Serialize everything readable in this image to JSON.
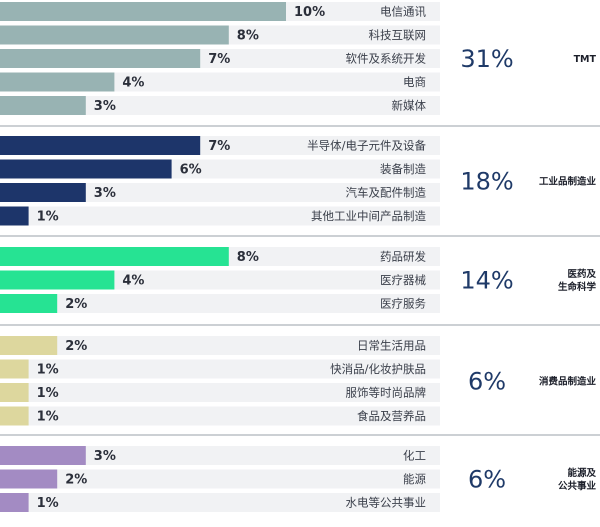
{
  "chart_data": {
    "type": "bar",
    "orientation": "horizontal",
    "unit": "%",
    "groups": [
      {
        "name_lines": [
          "TMT"
        ],
        "total": "31%",
        "color": "#98b3b3",
        "items": [
          {
            "label": "电信通讯",
            "value": 10,
            "value_label": "10%"
          },
          {
            "label": "科技互联网",
            "value": 8,
            "value_label": "8%"
          },
          {
            "label": "软件及系统开发",
            "value": 7,
            "value_label": "7%"
          },
          {
            "label": "电商",
            "value": 4,
            "value_label": "4%"
          },
          {
            "label": "新媒体",
            "value": 3,
            "value_label": "3%"
          }
        ]
      },
      {
        "name_lines": [
          "工业品制造业"
        ],
        "total": "18%",
        "color": "#1d356a",
        "items": [
          {
            "label": "半导体/电子元件及设备",
            "value": 7,
            "value_label": "7%"
          },
          {
            "label": "装备制造",
            "value": 6,
            "value_label": "6%"
          },
          {
            "label": "汽车及配件制造",
            "value": 3,
            "value_label": "3%"
          },
          {
            "label": "其他工业中间产品制造",
            "value": 1,
            "value_label": "1%"
          }
        ]
      },
      {
        "name_lines": [
          "医药及",
          "生命科学"
        ],
        "total": "14%",
        "color": "#26e393",
        "items": [
          {
            "label": "药品研发",
            "value": 8,
            "value_label": "8%"
          },
          {
            "label": "医疗器械",
            "value": 4,
            "value_label": "4%"
          },
          {
            "label": "医疗服务",
            "value": 2,
            "value_label": "2%"
          }
        ]
      },
      {
        "name_lines": [
          "消费品制造业"
        ],
        "total": "6%",
        "color": "#ddd79e",
        "items": [
          {
            "label": "日常生活用品",
            "value": 2,
            "value_label": "2%"
          },
          {
            "label": "快消品/化妆护肤品",
            "value": 1,
            "value_label": "1%"
          },
          {
            "label": "服饰等时尚品牌",
            "value": 1,
            "value_label": "1%"
          },
          {
            "label": "食品及营养品",
            "value": 1,
            "value_label": "1%"
          }
        ]
      },
      {
        "name_lines": [
          "能源及",
          "公共事业"
        ],
        "total": "6%",
        "color": "#a38bc3",
        "items": [
          {
            "label": "化工",
            "value": 3,
            "value_label": "3%"
          },
          {
            "label": "能源",
            "value": 2,
            "value_label": "2%"
          },
          {
            "label": "水电等公共事业",
            "value": 1,
            "value_label": "1%"
          }
        ]
      }
    ]
  }
}
